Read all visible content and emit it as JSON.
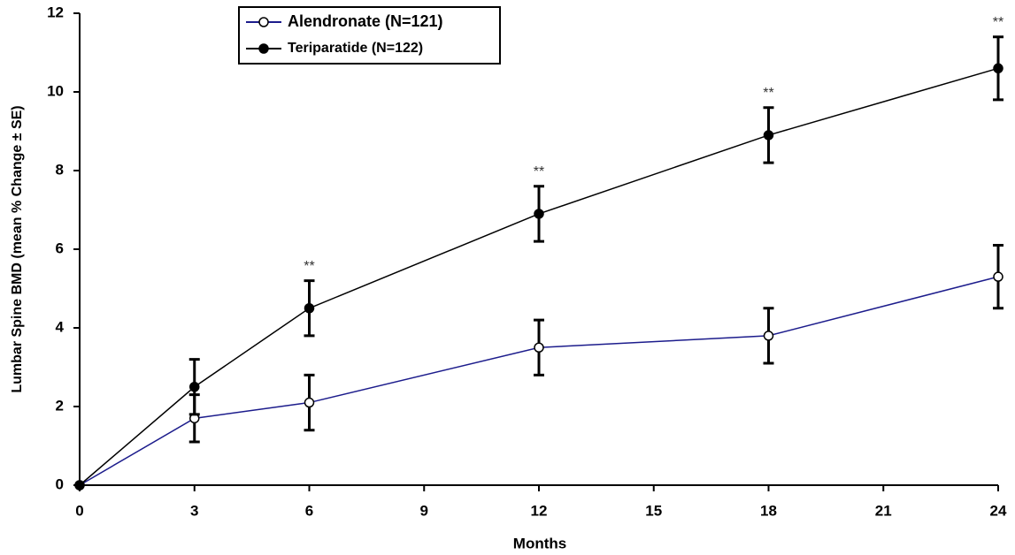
{
  "chart_data": {
    "type": "line",
    "x_label": "Months",
    "y_label": "Lumbar Spine BMD (mean % Change ± SE)",
    "x": [
      0,
      3,
      6,
      12,
      18,
      24
    ],
    "series": [
      {
        "name": "Alendronate (N=121)",
        "color": "#1c1c8c",
        "marker_fill": "#ffffff",
        "values": [
          0,
          1.7,
          2.1,
          3.5,
          3.8,
          5.3
        ],
        "errors": [
          null,
          0.6,
          0.7,
          0.7,
          0.7,
          0.8
        ]
      },
      {
        "name": "Teriparatide (N=122)",
        "color": "#000000",
        "marker_fill": "#000000",
        "values": [
          0,
          2.5,
          4.5,
          6.9,
          8.9,
          10.6
        ],
        "errors": [
          null,
          0.7,
          0.7,
          0.7,
          0.7,
          0.8
        ]
      }
    ],
    "annotations": [
      {
        "x": 6,
        "text": "**"
      },
      {
        "x": 12,
        "text": "**"
      },
      {
        "x": 18,
        "text": "**"
      },
      {
        "x": 24,
        "text": "**"
      }
    ],
    "xlim": [
      0,
      24
    ],
    "xticks": [
      0,
      3,
      6,
      9,
      12,
      15,
      18,
      21,
      24
    ],
    "ylim": [
      0,
      12
    ],
    "yticks": [
      0,
      2,
      4,
      6,
      8,
      10,
      12
    ],
    "grid": false,
    "legend": "top-left"
  }
}
